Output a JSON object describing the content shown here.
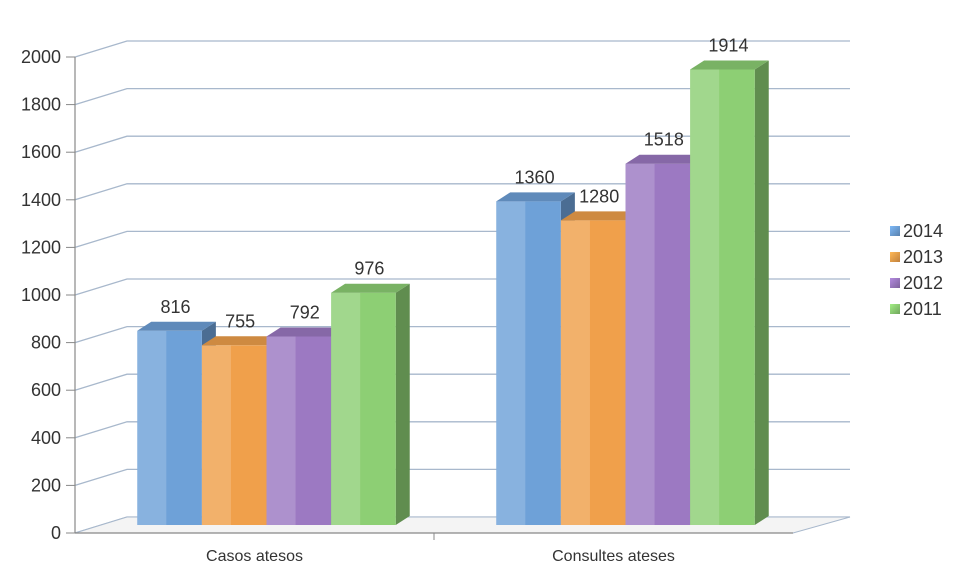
{
  "chart_data": {
    "type": "bar",
    "title": "",
    "xlabel": "",
    "ylabel": "",
    "categories": [
      "Casos atesos",
      "Consultes ateses"
    ],
    "series": [
      {
        "name": "2014",
        "values": [
          816,
          1360
        ],
        "color": "#6ea1d8"
      },
      {
        "name": "2013",
        "values": [
          755,
          1280
        ],
        "color": "#f0a04b"
      },
      {
        "name": "2012",
        "values": [
          792,
          1518
        ],
        "color": "#9c79c2"
      },
      {
        "name": "2011",
        "values": [
          976,
          1914
        ],
        "color": "#8dcf74"
      }
    ],
    "ylim": [
      0,
      2000
    ],
    "yticks": [
      0,
      200,
      400,
      600,
      800,
      1000,
      1200,
      1400,
      1600,
      1800,
      2000
    ],
    "grid": true,
    "legend_position": "right",
    "style": "3d-clustered-bar"
  }
}
